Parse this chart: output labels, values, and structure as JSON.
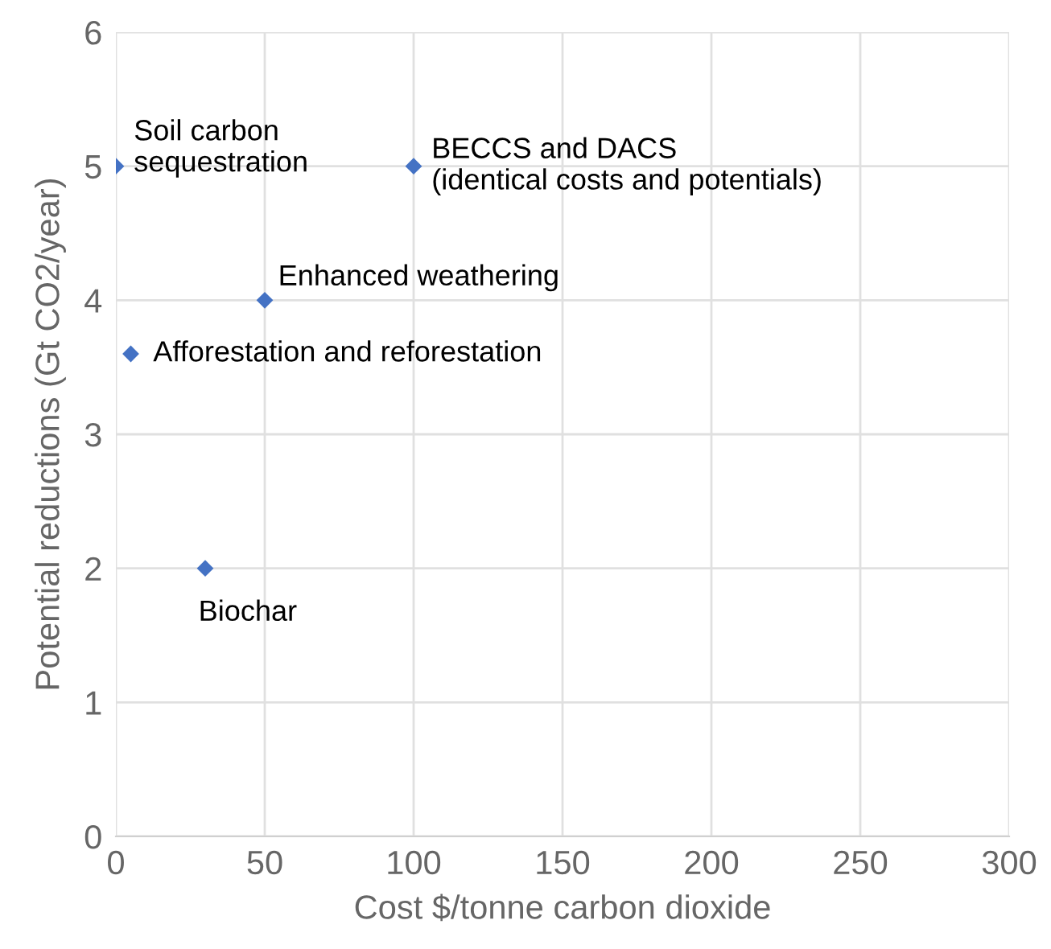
{
  "chart_data": {
    "type": "scatter",
    "xlabel": "Cost $/tonne carbon dioxide",
    "ylabel": "Potential reductions (Gt CO2/year)",
    "x": [
      0,
      100,
      50,
      5,
      30
    ],
    "values": [
      5,
      5,
      4,
      3.6,
      2
    ],
    "color": "#4472c4",
    "marker": "diamond",
    "xlim": [
      0,
      300
    ],
    "xticks": [
      0,
      50,
      100,
      150,
      200,
      250,
      300
    ],
    "ylim": [
      0,
      6
    ],
    "yticks": [
      0,
      1,
      2,
      3,
      4,
      5,
      6
    ],
    "grid": true,
    "annotations": [
      {
        "text": "Soil carbon\nsequestration",
        "x": 0,
        "y": 5
      },
      {
        "text": "BECCS and DACS\n(identical costs and potentials)",
        "x": 100,
        "y": 5
      },
      {
        "text": "Enhanced weathering",
        "x": 50,
        "y": 4
      },
      {
        "text": "Afforestation and reforestation",
        "x": 5,
        "y": 3.6
      },
      {
        "text": "Biochar",
        "x": 30,
        "y": 2
      }
    ]
  }
}
